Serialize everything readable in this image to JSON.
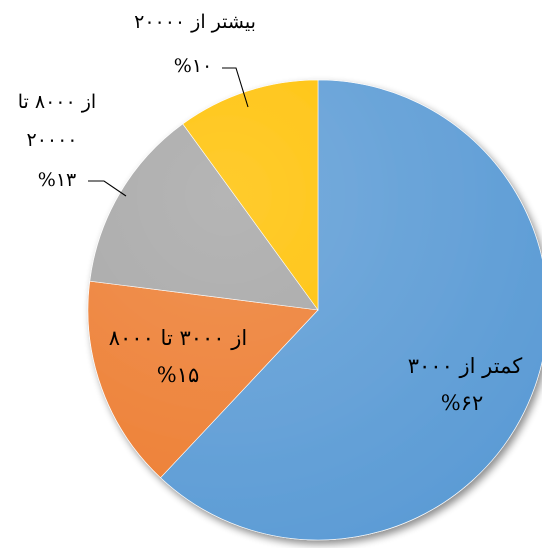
{
  "chart_data": {
    "type": "pie",
    "title": "",
    "categories": [
      "کمتر از ۳۰۰۰",
      "از ۳۰۰۰ تا ۸۰۰۰",
      "از ۸۰۰۰ تا ۲۰۰۰۰",
      "بیشتر از ۲۰۰۰۰"
    ],
    "values": [
      62,
      15,
      13,
      10
    ],
    "value_labels": [
      "%۶۲",
      "%۱۵",
      "%۱۳",
      "%۱۰"
    ],
    "colors": [
      "#5B9BD5",
      "#ED7D31",
      "#A5A5A5",
      "#FFC000"
    ],
    "legend": "none"
  }
}
